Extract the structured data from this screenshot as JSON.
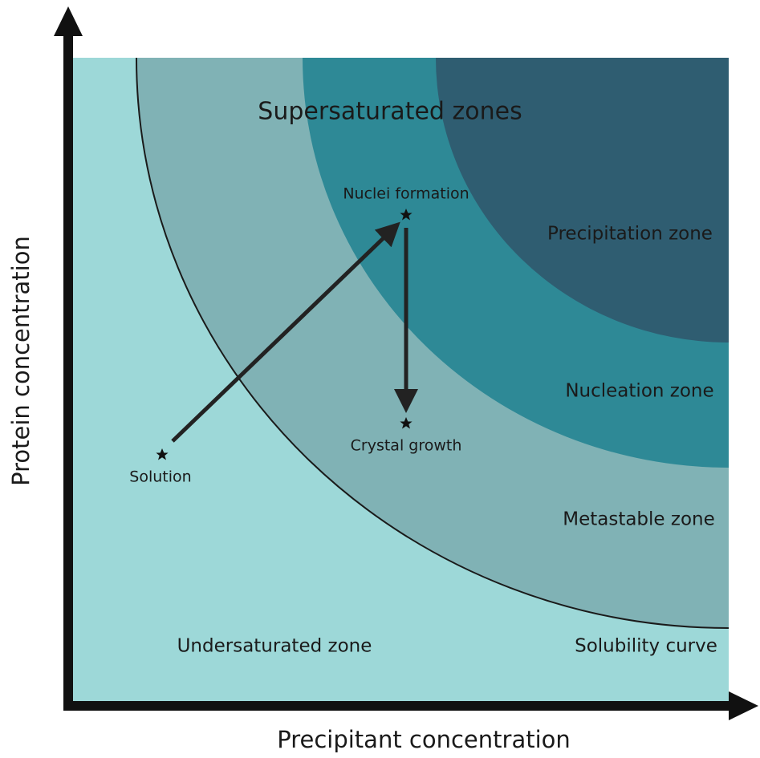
{
  "axes": {
    "y_label": "Protein concentration",
    "x_label": "Precipitant concentration"
  },
  "zones": {
    "supersaturated": "Supersaturated zones",
    "precipitation": "Precipitation zone",
    "nucleation": "Nucleation zone",
    "metastable": "Metastable zone",
    "undersaturated": "Undersaturated zone",
    "solubility": "Solubility curve"
  },
  "points": {
    "solution": "Solution",
    "nuclei": "Nuclei formation",
    "growth": "Crystal growth"
  }
}
